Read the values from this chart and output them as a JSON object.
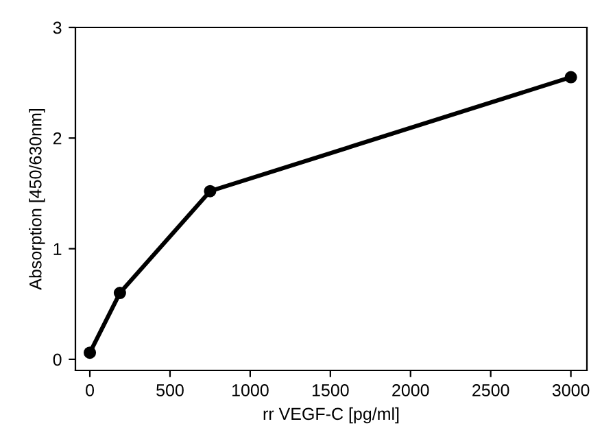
{
  "chart_data": {
    "type": "line",
    "xlabel": "rr VEGF-C [pg/ml]",
    "ylabel": "Absorption [450/630nm]",
    "x": [
      0,
      187.5,
      750,
      3000
    ],
    "series": [
      {
        "color": "#000000",
        "values": [
          0.06,
          0.6,
          1.52,
          2.55
        ]
      }
    ],
    "xlim": [
      -90,
      3100
    ],
    "ylim": [
      -0.1,
      3
    ],
    "xticks": [
      0,
      500,
      1000,
      1500,
      2000,
      2500,
      3000
    ],
    "yticks": [
      0,
      1,
      2,
      3
    ],
    "marker": "circle",
    "line_style": "solid",
    "grid": false,
    "legend": false
  }
}
